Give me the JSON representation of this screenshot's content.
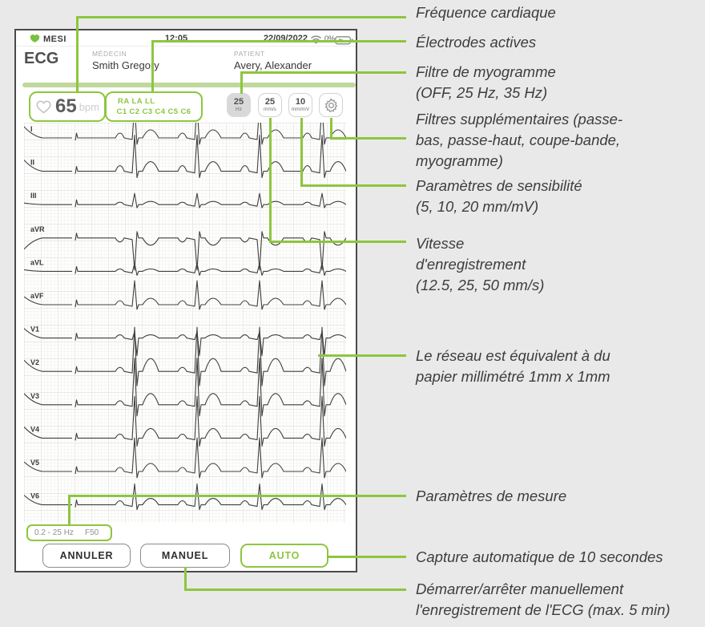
{
  "device": {
    "status": {
      "brand": "MESI",
      "time": "12:05",
      "date": "22/09/2022",
      "battery_pct": "0%"
    },
    "header": {
      "app_title": "ECG",
      "physician_label": "MÉDECIN",
      "physician_name": "Smith Gregory",
      "patient_label": "PATIENT",
      "patient_name": "Avery, Alexander"
    },
    "vitals": {
      "heart_rate": "65",
      "heart_rate_unit": "bpm"
    },
    "electrodes": {
      "limb_row": "RA  LA  LL",
      "chest_row": "C1  C2  C3  C4  C5  C6"
    },
    "controls": {
      "myogram_filter": {
        "value": "25",
        "unit": "Hz"
      },
      "speed": {
        "value": "25",
        "unit": "mm/s"
      },
      "sensitivity": {
        "value": "10",
        "unit": "mm/mV"
      }
    },
    "measure_params": {
      "bandwidth": "0.2 - 25 Hz",
      "notch": "F50"
    },
    "actions": {
      "cancel": "ANNULER",
      "manual": "MANUEL",
      "auto": "AUTO"
    }
  },
  "ecg": {
    "leads": [
      {
        "name": "I",
        "p": 6,
        "r": 40,
        "s": 8,
        "t": 10,
        "settle": 14
      },
      {
        "name": "II",
        "p": 7,
        "r": 45,
        "s": 8,
        "t": 12,
        "settle": 14
      },
      {
        "name": "III",
        "p": 3,
        "r": 14,
        "s": 4,
        "t": 4,
        "settle": 2
      },
      {
        "name": "aVR",
        "p": -5,
        "r": -40,
        "s": -8,
        "t": -9,
        "settle": -14
      },
      {
        "name": "aVL",
        "p": 3,
        "r": 10,
        "s": 5,
        "t": 3,
        "settle": 2
      },
      {
        "name": "aVF",
        "p": 5,
        "r": 30,
        "s": 6,
        "t": 8,
        "settle": 10
      },
      {
        "name": "V1",
        "p": 4,
        "r": 8,
        "s": 22,
        "t": 4,
        "settle": 12
      },
      {
        "name": "V2",
        "p": 5,
        "r": 55,
        "s": 18,
        "t": 16,
        "settle": 14
      },
      {
        "name": "V3",
        "p": 5,
        "r": 58,
        "s": 14,
        "t": 14,
        "settle": 14
      },
      {
        "name": "V4",
        "p": 5,
        "r": 52,
        "s": 10,
        "t": 12,
        "settle": 14
      },
      {
        "name": "V5",
        "p": 5,
        "r": 42,
        "s": 8,
        "t": 10,
        "settle": 12
      },
      {
        "name": "V6",
        "p": 5,
        "r": 26,
        "s": 6,
        "t": 8,
        "settle": 12
      }
    ]
  },
  "annotations": [
    {
      "id": "heart-rate",
      "lines": [
        "Fréquence cardiaque"
      ]
    },
    {
      "id": "electrodes",
      "lines": [
        "Électrodes actives"
      ]
    },
    {
      "id": "myogram",
      "lines": [
        "Filtre de myogramme",
        "(OFF, 25 Hz, 35 Hz)"
      ]
    },
    {
      "id": "extra-filters",
      "lines": [
        "Filtres supplémentaires (passe-",
        "bas, passe-haut, coupe-bande,",
        "myogramme)"
      ]
    },
    {
      "id": "sensitivity",
      "lines": [
        "Paramètres de sensibilité",
        "(5, 10, 20 mm/mV)"
      ]
    },
    {
      "id": "speed",
      "lines": [
        "Vitesse",
        "d'enregistrement",
        "(12.5, 25, 50 mm/s)"
      ]
    },
    {
      "id": "grid-note",
      "lines": [
        "Le réseau est équivalent à du",
        "papier millimétré 1mm x 1mm"
      ]
    },
    {
      "id": "measure",
      "lines": [
        "Paramètres de mesure"
      ]
    },
    {
      "id": "auto-capture",
      "lines": [
        "Capture automatique de 10 secondes"
      ]
    },
    {
      "id": "manual-rec",
      "lines": [
        "Démarrer/arrêter manuellement",
        "l'enregistrement de l'ECG (max. 5 min)"
      ]
    }
  ],
  "colors": {
    "accent": "#8dc63f",
    "trace": "#3f3f3f",
    "grid_minor": "#e7e9e1",
    "grid_major": "#d3d7ca"
  }
}
